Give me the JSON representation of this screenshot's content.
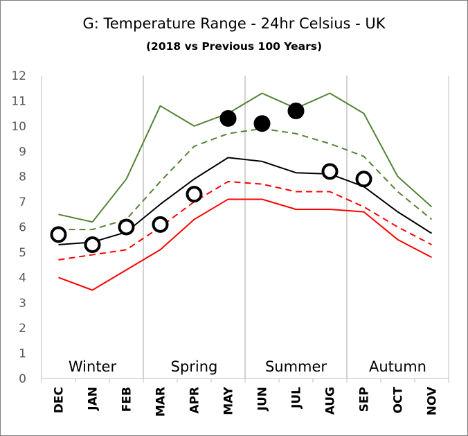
{
  "chart_data": {
    "type": "line",
    "title": "G: Temperature Range - 24hr Celsius - UK",
    "subtitle": "(2018 vs Previous 100 Years)",
    "categories": [
      "DEC",
      "JAN",
      "FEB",
      "MAR",
      "APR",
      "MAY",
      "JUN",
      "JUL",
      "AUG",
      "SEP",
      "OCT",
      "NOV"
    ],
    "ylim": [
      0,
      12
    ],
    "yticks": [
      0,
      1,
      2,
      3,
      4,
      5,
      6,
      7,
      8,
      9,
      10,
      11,
      12
    ],
    "grid": false,
    "seasons": [
      "Winter",
      "Spring",
      "Summer",
      "Autumn"
    ],
    "series": [
      {
        "values": [
          6.5,
          6.2,
          7.9,
          10.8,
          10.0,
          10.5,
          11.3,
          10.7,
          11.3,
          10.5,
          8.0,
          6.8
        ],
        "color": "#548235",
        "style": "solid"
      },
      {
        "values": [
          5.9,
          5.9,
          6.3,
          7.8,
          9.2,
          9.7,
          9.9,
          9.7,
          9.3,
          8.8,
          7.4,
          6.3
        ],
        "color": "#548235",
        "style": "dashed"
      },
      {
        "values": [
          5.3,
          5.4,
          5.8,
          6.9,
          7.9,
          8.75,
          8.6,
          8.15,
          8.1,
          7.6,
          6.6,
          5.75
        ],
        "color": "#000000",
        "style": "solid"
      },
      {
        "values": [
          4.7,
          4.9,
          5.1,
          6.0,
          7.0,
          7.8,
          7.7,
          7.4,
          7.4,
          6.8,
          6.0,
          5.3
        ],
        "color": "#ff0000",
        "style": "dashed"
      },
      {
        "values": [
          4.0,
          3.5,
          4.3,
          5.1,
          6.3,
          7.1,
          7.1,
          6.7,
          6.7,
          6.6,
          5.5,
          4.8
        ],
        "color": "#ff0000",
        "style": "solid"
      }
    ],
    "markers_2018": {
      "values": [
        5.7,
        5.3,
        6.0,
        6.1,
        7.3,
        10.3,
        10.1,
        10.6,
        8.2,
        7.9,
        null,
        null
      ],
      "filled": [
        false,
        false,
        false,
        false,
        false,
        true,
        true,
        true,
        false,
        false,
        null,
        null
      ]
    }
  }
}
